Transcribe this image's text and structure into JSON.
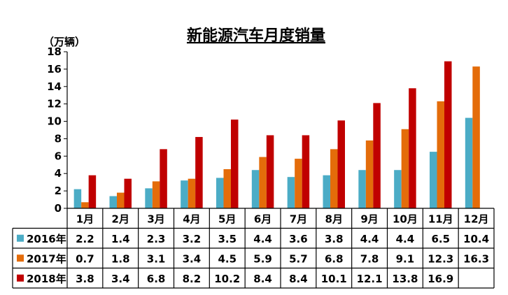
{
  "chart_data": {
    "type": "bar",
    "title": "新能源汽车月度销量",
    "unit_label": "（万辆）",
    "categories": [
      "1月",
      "2月",
      "3月",
      "4月",
      "5月",
      "6月",
      "7月",
      "8月",
      "9月",
      "10月",
      "11月",
      "12月"
    ],
    "ylim": [
      0,
      18
    ],
    "yticks": [
      "0",
      "2",
      "4",
      "6",
      "8",
      "10",
      "12",
      "14",
      "16",
      "18"
    ],
    "grid": false,
    "legend_placement": "table-left",
    "series": [
      {
        "name": "2016年",
        "color": "#4bacc6",
        "values": [
          2.2,
          1.4,
          2.3,
          3.2,
          3.5,
          4.4,
          3.6,
          3.8,
          4.4,
          4.4,
          6.5,
          10.4
        ],
        "labels": [
          "2.2",
          "1.4",
          "2.3",
          "3.2",
          "3.5",
          "4.4",
          "3.6",
          "3.8",
          "4.4",
          "4.4",
          "6.5",
          "10.4"
        ]
      },
      {
        "name": "2017年",
        "color": "#e46c0a",
        "values": [
          0.7,
          1.8,
          3.1,
          3.4,
          4.5,
          5.9,
          5.7,
          6.8,
          7.8,
          9.1,
          12.3,
          16.3
        ],
        "labels": [
          "0.7",
          "1.8",
          "3.1",
          "3.4",
          "4.5",
          "5.9",
          "5.7",
          "6.8",
          "7.8",
          "9.1",
          "12.3",
          "16.3"
        ]
      },
      {
        "name": "2018年",
        "color": "#c00000",
        "values": [
          3.8,
          3.4,
          6.8,
          8.2,
          10.2,
          8.4,
          8.4,
          10.1,
          12.1,
          13.8,
          16.9,
          null
        ],
        "labels": [
          "3.8",
          "3.4",
          "6.8",
          "8.2",
          "10.2",
          "8.4",
          "8.4",
          "10.1",
          "12.1",
          "13.8",
          "16.9",
          ""
        ]
      }
    ]
  }
}
